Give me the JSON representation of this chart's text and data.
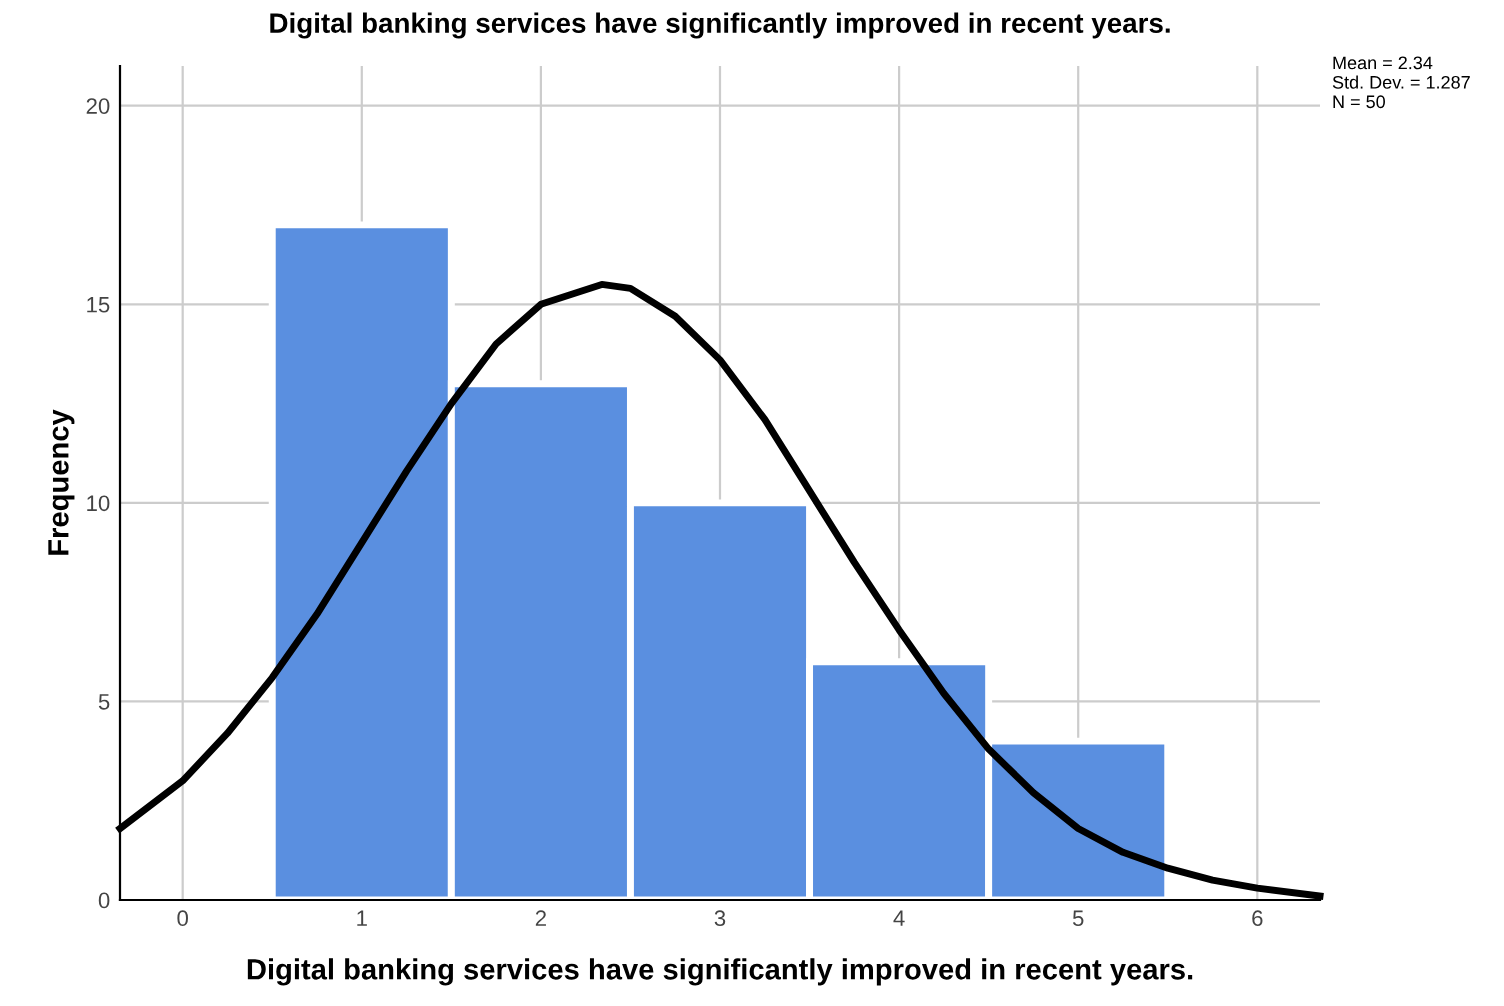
{
  "chart_data": {
    "type": "histogram",
    "title": "Digital banking services have significantly improved in recent years.",
    "xlabel": "Digital banking services have significantly improved in recent years.",
    "ylabel": "Frequency",
    "bins": [
      0.5,
      1.5,
      2.5,
      3.5,
      4.5,
      5.5
    ],
    "values": [
      17,
      13,
      10,
      6,
      4
    ],
    "color": "#5a8fe0",
    "series": [
      {
        "type": "line",
        "color": "#000000",
        "x": [
          -0.35,
          0,
          0.25,
          0.5,
          0.75,
          1,
          1.25,
          1.5,
          1.75,
          2,
          2.34,
          2.5,
          2.75,
          3,
          3.25,
          3.5,
          3.75,
          4,
          4.25,
          4.5,
          4.75,
          5,
          5.25,
          5.5,
          5.75,
          6,
          6.35
        ],
        "values": [
          1.8,
          3.0,
          4.2,
          5.6,
          7.2,
          9.0,
          10.8,
          12.5,
          14.0,
          15.0,
          15.5,
          15.4,
          14.7,
          13.6,
          12.1,
          10.3,
          8.5,
          6.8,
          5.2,
          3.8,
          2.7,
          1.8,
          1.2,
          0.8,
          0.5,
          0.3,
          0.1
        ]
      }
    ],
    "xlim": [
      -0.35,
      6.35
    ],
    "ylim": [
      0,
      21
    ],
    "xticks": [
      0,
      1,
      2,
      3,
      4,
      5,
      6
    ],
    "yticks": [
      0,
      5,
      10,
      15,
      20
    ],
    "grid": true,
    "annotations": [
      "Mean = 2.34\nStd. Dev. = 1.287\nN = 50"
    ]
  }
}
